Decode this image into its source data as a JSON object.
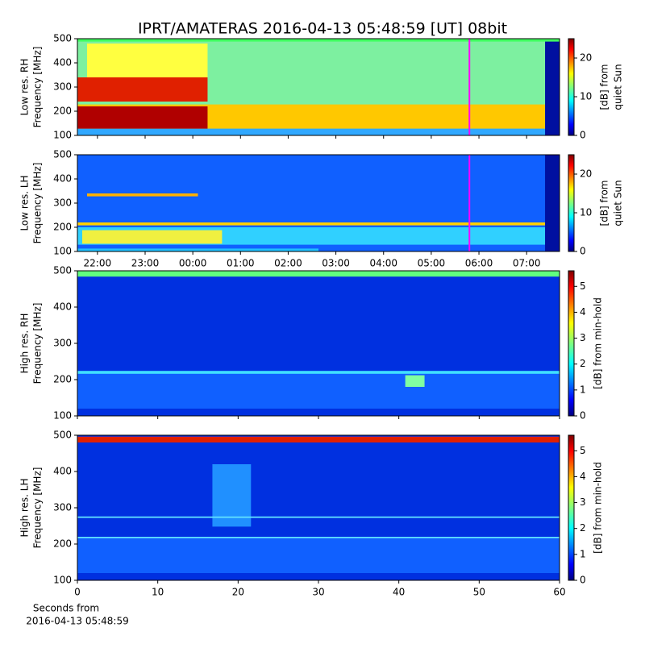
{
  "chart_data": [
    {
      "type": "spectrogram",
      "title": "IPRT/AMATERAS 2016-04-13 05:48:59 [UT]   08bit",
      "ylabel": [
        "Low res. RH",
        "Frequency [MHz]"
      ],
      "ylim": [
        100,
        500
      ],
      "yticks": [
        100,
        200,
        300,
        400,
        500
      ],
      "xlim": [
        21.58,
        31.69
      ],
      "xticks": [
        22,
        23,
        24,
        25,
        26,
        27,
        28,
        29,
        30,
        31
      ],
      "xticklabels": false,
      "marker_x": 29.8,
      "marker_color": "#ff00ff",
      "colormap": "jet",
      "colorbar": {
        "label": [
          "[dB] from",
          "quiet Sun"
        ],
        "lim": [
          0,
          25
        ],
        "ticks": [
          0,
          10,
          20
        ]
      }
    },
    {
      "type": "spectrogram",
      "ylabel": [
        "Low res. LH",
        "Frequency [MHz]"
      ],
      "ylim": [
        100,
        500
      ],
      "yticks": [
        100,
        200,
        300,
        400,
        500
      ],
      "xlim": [
        21.58,
        31.69
      ],
      "xticks": [
        {
          "value": 22,
          "label": "22:00"
        },
        {
          "value": 23,
          "label": "23:00"
        },
        {
          "value": 24,
          "label": "00:00"
        },
        {
          "value": 25,
          "label": "01:00"
        },
        {
          "value": 26,
          "label": "02:00"
        },
        {
          "value": 27,
          "label": "03:00"
        },
        {
          "value": 28,
          "label": "04:00"
        },
        {
          "value": 29,
          "label": "05:00"
        },
        {
          "value": 30,
          "label": "06:00"
        },
        {
          "value": 31,
          "label": "07:00"
        }
      ],
      "xticklabels": true,
      "marker_x": 29.8,
      "marker_color": "#ff00ff",
      "colormap": "jet",
      "colorbar": {
        "label": [
          "[dB] from",
          "quiet Sun"
        ],
        "lim": [
          0,
          25
        ],
        "ticks": [
          0,
          10,
          20
        ]
      }
    },
    {
      "type": "spectrogram",
      "ylabel": [
        "High res. RH",
        "Frequency [MHz]"
      ],
      "ylim": [
        100,
        500
      ],
      "yticks": [
        100,
        200,
        300,
        400,
        500
      ],
      "xlim": [
        0,
        60
      ],
      "xticks": [
        0,
        10,
        20,
        30,
        40,
        50,
        60
      ],
      "xticklabels": false,
      "colormap": "jet",
      "colorbar": {
        "label": [
          "[dB] from min-hold"
        ],
        "lim": [
          0,
          5.6
        ],
        "ticks": [
          0,
          1,
          2,
          3,
          4,
          5
        ]
      }
    },
    {
      "type": "spectrogram",
      "ylabel": [
        "High res. LH",
        "Frequency [MHz]"
      ],
      "ylim": [
        100,
        500
      ],
      "yticks": [
        100,
        200,
        300,
        400,
        500
      ],
      "xlim": [
        0,
        60
      ],
      "xticks": [
        0,
        10,
        20,
        30,
        40,
        50,
        60
      ],
      "xticklabels": true,
      "xlabel": [
        "Seconds from",
        "2016-04-13 05:48:59"
      ],
      "colormap": "jet",
      "colorbar": {
        "label": [
          "[dB] from min-hold"
        ],
        "lim": [
          0,
          5.6
        ],
        "ticks": [
          0,
          1,
          2,
          3,
          4,
          5
        ]
      }
    }
  ]
}
